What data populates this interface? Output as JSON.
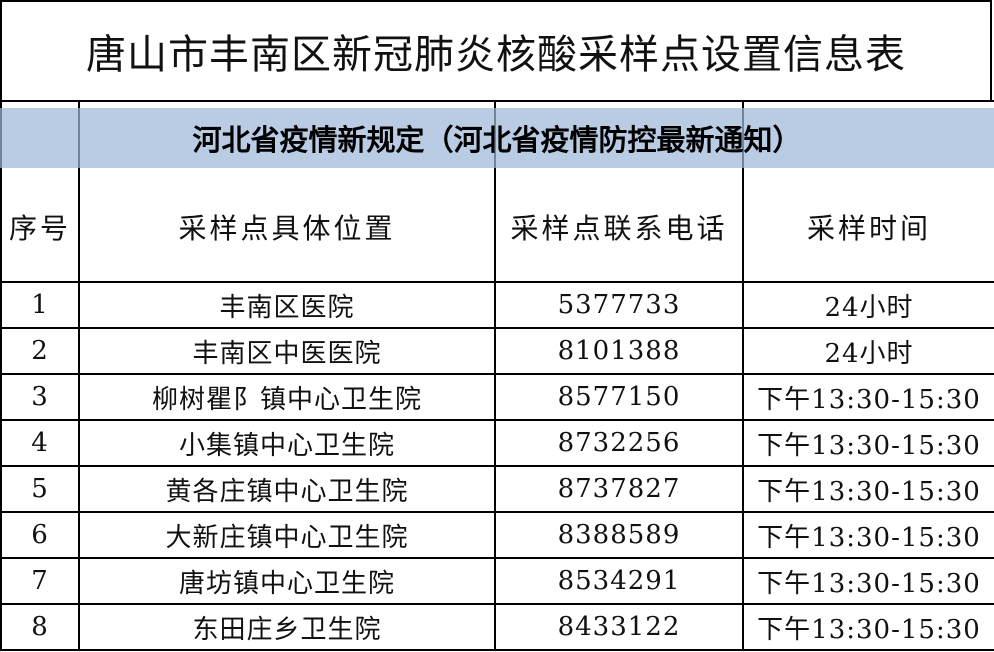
{
  "document": {
    "title": "唐山市丰南区新冠肺炎核酸采样点设置信息表",
    "headers": [
      "序号",
      "采样点具体位置",
      "采样点联系电话",
      "采样时间"
    ],
    "rows": [
      [
        "1",
        "丰南区医院",
        "5377733",
        "24小时"
      ],
      [
        "2",
        "丰南区中医医院",
        "8101388",
        "24小时"
      ],
      [
        "3",
        "柳树瞿阝镇中心卫生院",
        "8577150",
        "下午13:30-15:30"
      ],
      [
        "4",
        "小集镇中心卫生院",
        "8732256",
        "下午13:30-15:30"
      ],
      [
        "5",
        "黄各庄镇中心卫生院",
        "8737827",
        "下午13:30-15:30"
      ],
      [
        "6",
        "大新庄镇中心卫生院",
        "8388589",
        "下午13:30-15:30"
      ],
      [
        "7",
        "唐坊镇中心卫生院",
        "8534291",
        "下午13:30-15:30"
      ],
      [
        "8",
        "东田庄乡卫生院",
        "8433122",
        "下午13:30-15:30"
      ]
    ]
  },
  "banner": {
    "text": "河北省疫情新规定（河北省疫情防控最新通知）",
    "color": "#a0b7da"
  }
}
